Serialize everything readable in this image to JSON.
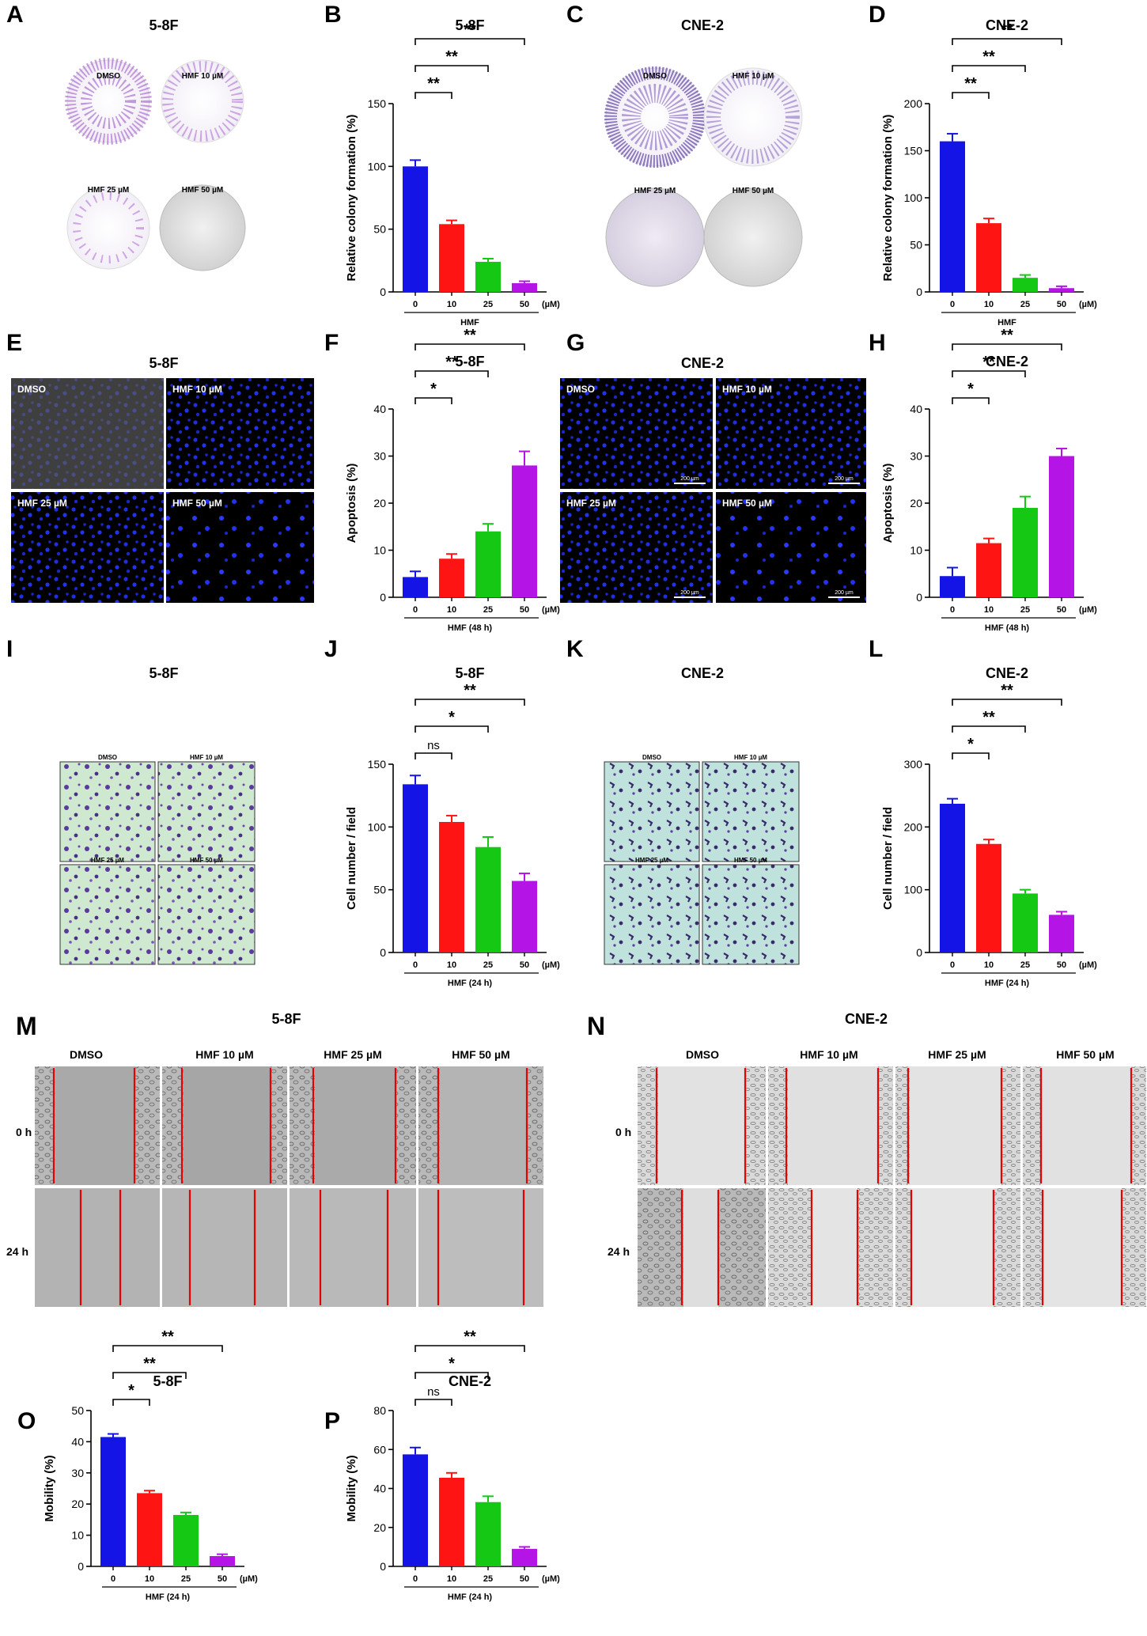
{
  "figure": {
    "colors": {
      "c0": "#1414e6",
      "c10": "#ff1414",
      "c25": "#14c814",
      "c50": "#b414e6"
    },
    "panels": [
      {
        "letter": "A",
        "title": "5-8F",
        "kind": "colony-dishes",
        "labels": [
          "DMSO",
          "HMF 10 µM",
          "HMF 25 µM",
          "HMF 50 µM"
        ]
      },
      {
        "letter": "C",
        "title": "CNE-2",
        "kind": "colony-dishes",
        "labels": [
          "DMSO",
          "HMF 10 µM",
          "HMF 25 µM",
          "HMF 50 µM"
        ]
      },
      {
        "letter": "E",
        "title": "5-8F",
        "kind": "fluorescence",
        "labels": [
          "DMSO",
          "HMF 10 µM",
          "HMF 25 µM",
          "HMF 50 µM"
        ]
      },
      {
        "letter": "G",
        "title": "CNE-2",
        "kind": "fluorescence",
        "labels": [
          "DMSO",
          "HMF 10 µM",
          "HMF 25 µM",
          "HMF 50 µM"
        ],
        "scalebar": "200 µm"
      },
      {
        "letter": "I",
        "title": "5-8F",
        "kind": "transwell",
        "labels": [
          "DMSO",
          "HMF 10 µM",
          "HMF 25 µM",
          "HMF 50 µM"
        ]
      },
      {
        "letter": "K",
        "title": "CNE-2",
        "kind": "transwell",
        "labels": [
          "DMSO",
          "HMF 10 µM",
          "HMF 25 µM",
          "HMF 50 µM"
        ]
      },
      {
        "letter": "M",
        "title": "5-8F",
        "kind": "wound",
        "columns": [
          "DMSO",
          "HMF 10 µM",
          "HMF 25 µM",
          "HMF 50 µM"
        ],
        "rows": [
          "0 h",
          "24 h"
        ]
      },
      {
        "letter": "N",
        "title": "CNE-2",
        "kind": "wound",
        "columns": [
          "DMSO",
          "HMF 10 µM",
          "HMF 25 µM",
          "HMF 50 µM"
        ],
        "rows": [
          "0 h",
          "24 h"
        ]
      }
    ]
  },
  "chart_data": [
    {
      "letter": "B",
      "title": "5-8F",
      "type": "bar",
      "categories": [
        "0",
        "10",
        "25",
        "50"
      ],
      "unit": "(µM)",
      "values": [
        100,
        54,
        24,
        7
      ],
      "errors": [
        5,
        3,
        2.5,
        1.5
      ],
      "ylabel": "Relative colony formation (%)",
      "xlabel": "HMF",
      "ylim": [
        0,
        150
      ],
      "yticks": [
        0,
        50,
        100,
        150
      ],
      "significance": [
        "**",
        "**",
        "**"
      ]
    },
    {
      "letter": "D",
      "title": "CNE-2",
      "type": "bar",
      "categories": [
        "0",
        "10",
        "25",
        "50"
      ],
      "unit": "(µM)",
      "values": [
        160,
        73,
        15,
        4
      ],
      "errors": [
        8,
        5,
        3,
        2
      ],
      "ylabel": "Relative colony formation (%)",
      "xlabel": "HMF",
      "ylim": [
        0,
        200
      ],
      "yticks": [
        0,
        50,
        100,
        150,
        200
      ],
      "significance": [
        "**",
        "**",
        "**"
      ]
    },
    {
      "letter": "F",
      "title": "5-8F",
      "type": "bar",
      "categories": [
        "0",
        "10",
        "25",
        "50"
      ],
      "unit": "(µM)",
      "values": [
        4.3,
        8.2,
        14,
        28
      ],
      "errors": [
        1.2,
        1,
        1.6,
        3
      ],
      "ylabel": "Apoptosis (%)",
      "xlabel": "HMF (48 h)",
      "ylim": [
        0,
        40
      ],
      "yticks": [
        0,
        10,
        20,
        30,
        40
      ],
      "significance": [
        "*",
        "**",
        "**"
      ]
    },
    {
      "letter": "H",
      "title": "CNE-2",
      "type": "bar",
      "categories": [
        "0",
        "10",
        "25",
        "50"
      ],
      "unit": "(µM)",
      "values": [
        4.5,
        11.5,
        19,
        30
      ],
      "errors": [
        1.8,
        1,
        2.4,
        1.6
      ],
      "ylabel": "Apoptosis (%)",
      "xlabel": "HMF (48 h)",
      "ylim": [
        0,
        40
      ],
      "yticks": [
        0,
        10,
        20,
        30,
        40
      ],
      "significance": [
        "*",
        "**",
        "**"
      ]
    },
    {
      "letter": "J",
      "title": "5-8F",
      "type": "bar",
      "categories": [
        "0",
        "10",
        "25",
        "50"
      ],
      "unit": "(µM)",
      "values": [
        134,
        104,
        84,
        57
      ],
      "errors": [
        7,
        5,
        8,
        6
      ],
      "ylabel": "Cell number / field",
      "xlabel": "HMF (24 h)",
      "ylim": [
        0,
        150
      ],
      "yticks": [
        0,
        50,
        100,
        150
      ],
      "significance": [
        "ns",
        "*",
        "**"
      ]
    },
    {
      "letter": "L",
      "title": "CNE-2",
      "type": "bar",
      "categories": [
        "0",
        "10",
        "25",
        "50"
      ],
      "unit": "(µM)",
      "values": [
        237,
        173,
        94,
        60
      ],
      "errors": [
        8,
        7,
        6,
        5
      ],
      "ylabel": "Cell number / field",
      "xlabel": "HMF (24 h)",
      "ylim": [
        0,
        300
      ],
      "yticks": [
        0,
        100,
        200,
        300
      ],
      "significance": [
        "*",
        "**",
        "**"
      ]
    },
    {
      "letter": "O",
      "title": "5-8F",
      "type": "bar",
      "categories": [
        "0",
        "10",
        "25",
        "50"
      ],
      "unit": "(µM)",
      "values": [
        41.5,
        23.5,
        16.5,
        3.3
      ],
      "errors": [
        1,
        0.8,
        0.8,
        0.6
      ],
      "ylabel": "Mobility (%)",
      "xlabel": "HMF (24 h)",
      "ylim": [
        0,
        50
      ],
      "yticks": [
        0,
        10,
        20,
        30,
        40,
        50
      ],
      "significance": [
        "*",
        "**",
        "**"
      ]
    },
    {
      "letter": "P",
      "title": "CNE-2",
      "type": "bar",
      "categories": [
        "0",
        "10",
        "25",
        "50"
      ],
      "unit": "(µM)",
      "values": [
        57.5,
        45.5,
        33,
        9
      ],
      "errors": [
        3.5,
        2.5,
        3,
        1
      ],
      "ylabel": "Mobility (%)",
      "xlabel": "HMF (24 h)",
      "ylim": [
        0,
        80
      ],
      "yticks": [
        0,
        20,
        40,
        60,
        80
      ],
      "significance": [
        "ns",
        "*",
        "**"
      ]
    }
  ]
}
